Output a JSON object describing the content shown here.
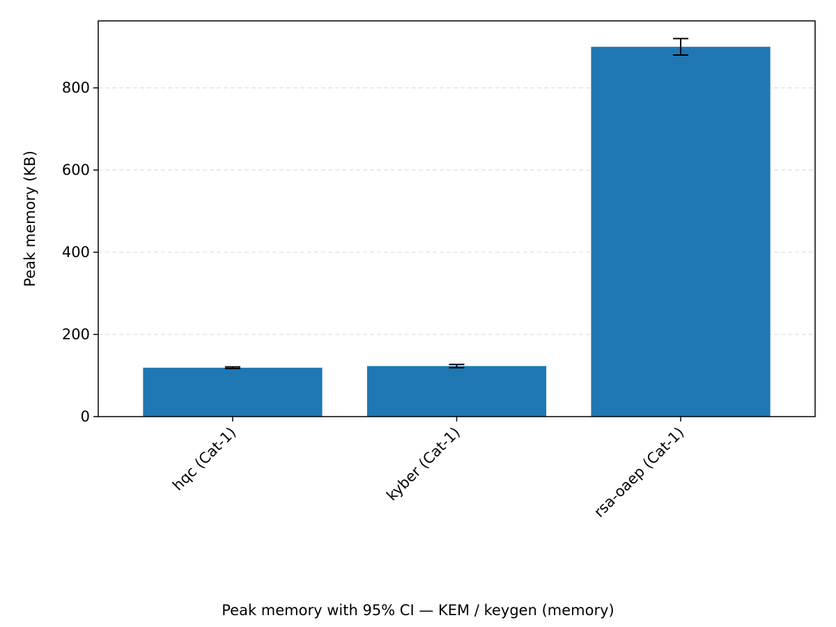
{
  "chart_data": {
    "type": "bar",
    "categories": [
      "hqc (Cat-1)",
      "kyber (Cat-1)",
      "rsa-oaep (Cat-1)"
    ],
    "values": [
      119,
      123,
      900
    ],
    "ci_lower": [
      117,
      119,
      880
    ],
    "ci_upper": [
      121,
      127,
      920
    ],
    "title": "Peak memory with 95% CI — KEM / keygen (memory)",
    "xlabel": "",
    "ylabel": "Peak memory (KB)",
    "ylim": [
      0,
      963
    ],
    "yticks": [
      0,
      200,
      400,
      600,
      800
    ],
    "grid": "y-dashed",
    "bar_color": "#1f77b4",
    "errorbar_color": "#000000"
  }
}
